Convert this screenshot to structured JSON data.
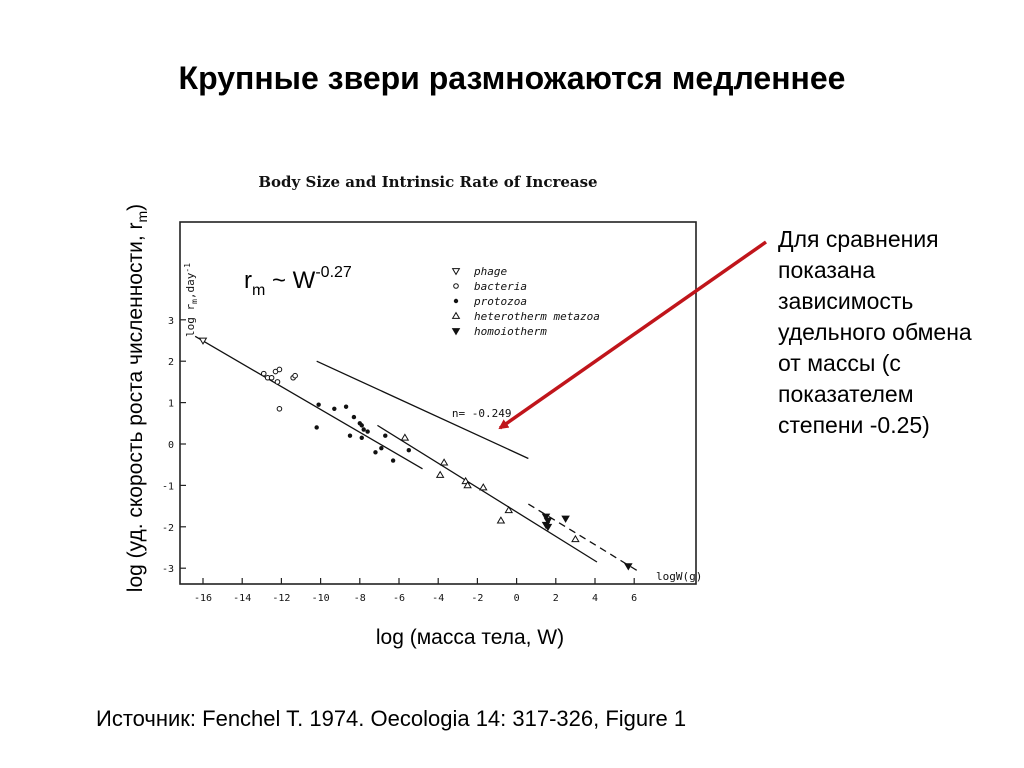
{
  "slide": {
    "title": "Крупные звери размножаются медленнее",
    "y_label_main": "log (уд. скорость роста численности, r",
    "y_label_sub": "m",
    "y_label_end": ")",
    "x_label": "log (масса тела, W)",
    "note": "Для сравнения показана зависимость удельного обмена от массы (с показателем степени -0.25)",
    "source": "Источник: Fenchel T. 1974. Oecologia 14: 317-326, Figure 1",
    "formula": {
      "base": "r",
      "sub": "m",
      "mid": " ~ W",
      "exp": "-0.27"
    },
    "arrow_color": "#c0151b"
  },
  "chart_data": {
    "type": "scatter",
    "title": "Body Size and Intrinsic Rate of Increase",
    "xlabel": "logW(g)",
    "ylabel": "log r",
    "ylabel_sub": "m",
    "ylabel_rest": ",day",
    "ylabel_sup": "-1",
    "xlim": [
      -17,
      7
    ],
    "ylim": [
      -3.3,
      3.2
    ],
    "x_ticks": [
      -16,
      -14,
      -12,
      -10,
      -8,
      -6,
      -4,
      -2,
      0,
      2,
      4,
      6
    ],
    "y_ticks": [
      3,
      2,
      1,
      0,
      -1,
      -2,
      -3
    ],
    "grid": false,
    "legend_position": "top-center",
    "legend": [
      {
        "name": "phage",
        "marker": "triangle-down-open"
      },
      {
        "name": "bacteria",
        "marker": "circle-open"
      },
      {
        "name": "protozoa",
        "marker": "circle-filled"
      },
      {
        "name": "heterotherm metazoa",
        "marker": "triangle-up-open"
      },
      {
        "name": "homoiotherm",
        "marker": "triangle-down-filled"
      }
    ],
    "series": [
      {
        "name": "phage",
        "marker": "triangle-down-open",
        "points": [
          [
            -16.0,
            2.5
          ]
        ]
      },
      {
        "name": "bacteria",
        "marker": "circle-open",
        "points": [
          [
            -12.9,
            1.7
          ],
          [
            -12.7,
            1.6
          ],
          [
            -12.5,
            1.6
          ],
          [
            -12.3,
            1.75
          ],
          [
            -12.1,
            1.8
          ],
          [
            -12.2,
            1.5
          ],
          [
            -11.4,
            1.6
          ],
          [
            -11.3,
            1.65
          ],
          [
            -12.1,
            0.85
          ]
        ]
      },
      {
        "name": "protozoa",
        "marker": "circle-filled",
        "points": [
          [
            -10.1,
            0.95
          ],
          [
            -9.3,
            0.85
          ],
          [
            -8.7,
            0.9
          ],
          [
            -8.3,
            0.65
          ],
          [
            -8.0,
            0.5
          ],
          [
            -7.9,
            0.45
          ],
          [
            -7.8,
            0.35
          ],
          [
            -7.6,
            0.3
          ],
          [
            -7.9,
            0.15
          ],
          [
            -8.5,
            0.2
          ],
          [
            -10.2,
            0.4
          ],
          [
            -6.7,
            0.2
          ],
          [
            -6.9,
            -0.1
          ],
          [
            -7.2,
            -0.2
          ],
          [
            -6.3,
            -0.4
          ],
          [
            -5.5,
            -0.15
          ]
        ]
      },
      {
        "name": "heterotherm metazoa",
        "marker": "triangle-up-open",
        "points": [
          [
            -5.7,
            0.15
          ],
          [
            -3.7,
            -0.45
          ],
          [
            -3.9,
            -0.75
          ],
          [
            -2.6,
            -0.9
          ],
          [
            -2.5,
            -1.0
          ],
          [
            -1.7,
            -1.05
          ],
          [
            -0.4,
            -1.6
          ],
          [
            -0.8,
            -1.85
          ],
          [
            3.0,
            -2.3
          ]
        ]
      },
      {
        "name": "homoiotherm",
        "marker": "triangle-down-filled",
        "points": [
          [
            1.5,
            -1.75
          ],
          [
            1.6,
            -1.85
          ],
          [
            1.5,
            -1.95
          ],
          [
            1.6,
            -2.0
          ],
          [
            2.5,
            -1.8
          ],
          [
            5.7,
            -2.95
          ]
        ]
      }
    ],
    "lines": [
      {
        "style": "solid",
        "points": [
          [
            -16.4,
            2.6
          ],
          [
            -4.8,
            -0.6
          ]
        ]
      },
      {
        "style": "solid",
        "points": [
          [
            -7.1,
            0.45
          ],
          [
            4.1,
            -2.85
          ]
        ]
      },
      {
        "style": "dashed",
        "points": [
          [
            0.6,
            -1.45
          ],
          [
            6.3,
            -3.1
          ]
        ]
      },
      {
        "style": "solid",
        "points": [
          [
            -10.2,
            2.0
          ],
          [
            0.6,
            -0.35
          ]
        ]
      }
    ],
    "annotations": [
      {
        "text": "n= -0.249",
        "x": -3.3,
        "y": 0.65
      }
    ]
  }
}
